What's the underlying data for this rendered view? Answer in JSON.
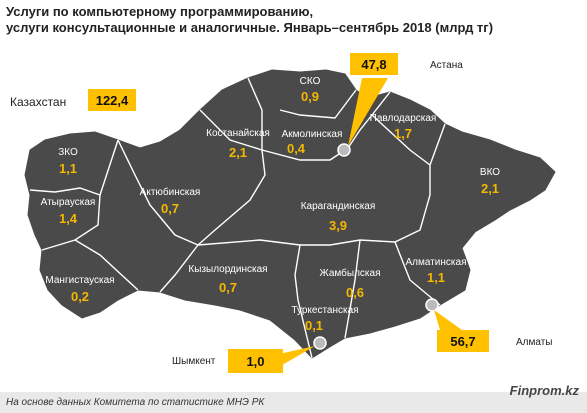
{
  "title": {
    "line1": "Услуги по компьютерному программированию,",
    "line2": "услуги консультационные и аналогичные. Январь–сентябрь 2018 (млрд тг)"
  },
  "total": {
    "label": "Казахстан",
    "value": "122,4"
  },
  "regions": [
    {
      "id": "zko",
      "name": "ЗКО",
      "value": "1,1"
    },
    {
      "id": "atyrau",
      "name": "Атырауская",
      "value": "1,4"
    },
    {
      "id": "mangistau",
      "name": "Мангистауская",
      "value": "0,2"
    },
    {
      "id": "aktobe",
      "name": "Актюбинская",
      "value": "0,7"
    },
    {
      "id": "kostanay",
      "name": "Костанайская",
      "value": "2,1"
    },
    {
      "id": "sko",
      "name": "СКО",
      "value": "0,9"
    },
    {
      "id": "akmola",
      "name": "Акмолинская",
      "value": "0,4"
    },
    {
      "id": "pavlodar",
      "name": "Павлодарская",
      "value": "1,7"
    },
    {
      "id": "vko",
      "name": "ВКО",
      "value": "2,1"
    },
    {
      "id": "karaganda",
      "name": "Карагандинская",
      "value": "3,9"
    },
    {
      "id": "kyzylorda",
      "name": "Кызылординская",
      "value": "0,7"
    },
    {
      "id": "zhambyl",
      "name": "Жамбылская",
      "value": "0,6"
    },
    {
      "id": "almaty-region",
      "name": "Алматинская",
      "value": "1,1"
    },
    {
      "id": "turkestan",
      "name": "Туркестанская",
      "value": "0,1"
    }
  ],
  "cities": [
    {
      "id": "astana",
      "name": "Астана",
      "value": "47,8"
    },
    {
      "id": "almaty",
      "name": "Алматы",
      "value": "56,7"
    },
    {
      "id": "shymkent",
      "name": "Шымкент",
      "value": "1,0"
    }
  ],
  "colors": {
    "map_fill": "#4a4a4a",
    "border": "#ffffff",
    "value": "#f5b800",
    "callout": "#ffc000"
  },
  "footer": {
    "source": "На основе данных Комитета по статистике МНЭ РК",
    "brand": "Finprom.kz"
  }
}
